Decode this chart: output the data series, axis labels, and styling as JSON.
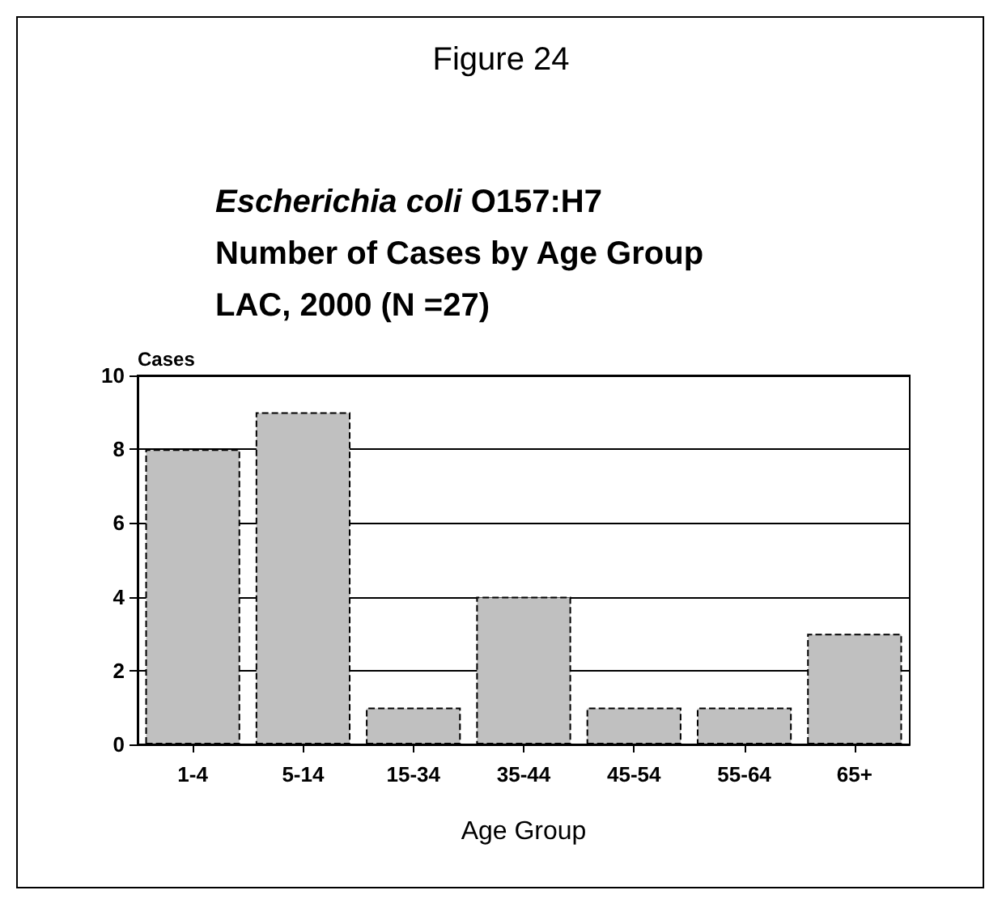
{
  "chart_data": {
    "type": "bar",
    "title": "Figure 24",
    "subtitle": "Escherichia coli O157:H7\nNumber of Cases by Age Group\nLAC, 2000 (N =27)",
    "categories": [
      "1-4",
      "5-14",
      "15-34",
      "35-44",
      "45-54",
      "55-64",
      "65+"
    ],
    "values": [
      8,
      9,
      1,
      4,
      1,
      1,
      3
    ],
    "color": "#c0c0c0",
    "ylim": [
      0,
      10
    ],
    "yticks": [
      0,
      2,
      4,
      6,
      8,
      10
    ],
    "grid": "y",
    "xlabel": "Age Group",
    "ylabel": "Cases"
  }
}
